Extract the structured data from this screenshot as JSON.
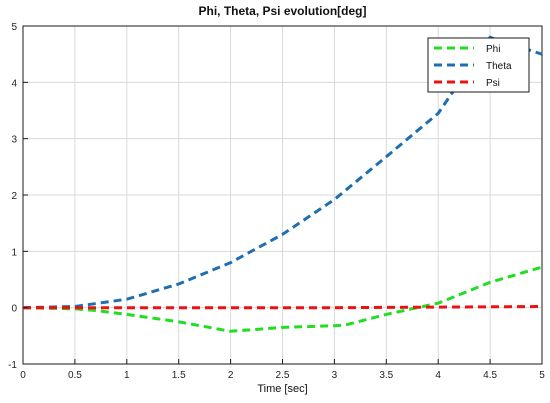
{
  "chart_data": {
    "type": "line",
    "title": "Phi, Theta, Psi evolution[deg]",
    "xlabel": "Time [sec]",
    "ylabel": "",
    "xlim": [
      0,
      5
    ],
    "ylim": [
      -1,
      5
    ],
    "xticks": [
      "0",
      "0.5",
      "1",
      "1.5",
      "2",
      "2.5",
      "3",
      "3.5",
      "4",
      "4.5",
      "5"
    ],
    "yticks": [
      "-1",
      "0",
      "1",
      "2",
      "3",
      "4",
      "5"
    ],
    "grid": true,
    "legend_position": "top-right",
    "series": [
      {
        "name": "Phi",
        "color": "#22dd22",
        "style": "dashed",
        "x": [
          0,
          0.5,
          0.7,
          1,
          1.5,
          2,
          2.5,
          3,
          3.1,
          3.5,
          4,
          4.5,
          5
        ],
        "y": [
          0,
          -0.02,
          -0.05,
          -0.12,
          -0.25,
          -0.42,
          -0.35,
          -0.32,
          -0.31,
          -0.12,
          0.08,
          0.45,
          0.72
        ]
      },
      {
        "name": "Theta",
        "color": "#1f6fb0",
        "style": "dashed",
        "x": [
          0,
          0.5,
          1,
          1.5,
          2,
          2.5,
          3,
          3.5,
          4,
          4.5,
          5
        ],
        "y": [
          0,
          0.02,
          0.15,
          0.42,
          0.8,
          1.3,
          1.92,
          2.68,
          3.45,
          4.8,
          4.5
        ]
      },
      {
        "name": "Psi",
        "color": "#ee1111",
        "style": "dashed",
        "x": [
          0,
          1,
          2,
          3,
          4,
          5
        ],
        "y": [
          0,
          0,
          0,
          0,
          0.01,
          0.02
        ]
      }
    ]
  }
}
